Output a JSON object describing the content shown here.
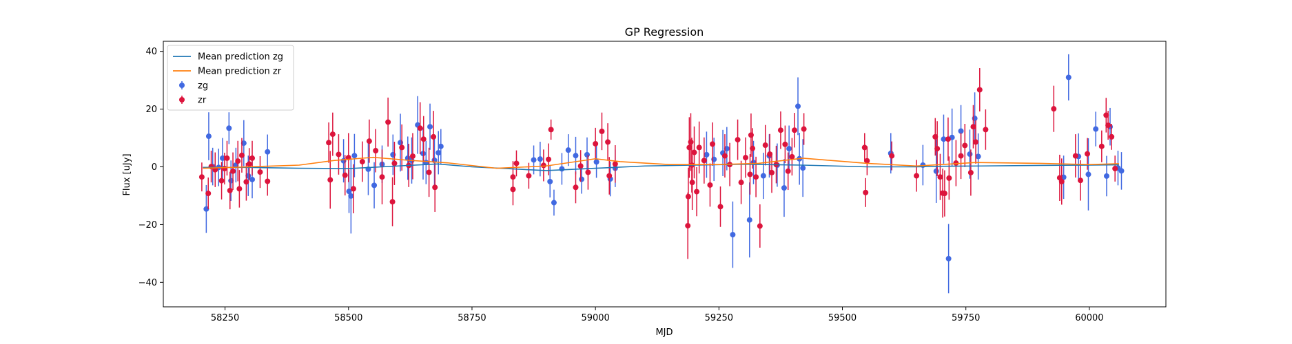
{
  "chart_data": {
    "type": "scatter",
    "title": "GP Regression",
    "xlabel": "MJD",
    "ylabel": "Flux [uJy]",
    "xlim": [
      58125,
      60155
    ],
    "ylim": [
      -48.5,
      43.5
    ],
    "xticks": [
      58250,
      58500,
      58750,
      59000,
      59250,
      59500,
      59750,
      60000
    ],
    "yticks": [
      -40,
      -20,
      0,
      20,
      40
    ],
    "grid": false,
    "legend_position": "top-left",
    "legend": [
      {
        "label": "Mean prediction zg",
        "kind": "line",
        "color": "#1f77b4"
      },
      {
        "label": "Mean prediction zr",
        "kind": "line",
        "color": "#ff7f0e"
      },
      {
        "label": "zg",
        "kind": "errorbar",
        "color": "#4169e1"
      },
      {
        "label": "zr",
        "kind": "errorbar",
        "color": "#dc143c"
      }
    ],
    "series": [
      {
        "name": "Mean prediction zg",
        "kind": "line",
        "color": "#1f77b4",
        "x": [
          58205,
          58300,
          58400,
          58500,
          58600,
          58680,
          58750,
          58900,
          59000,
          59100,
          59200,
          59300,
          59420,
          59550,
          59650,
          59700,
          59780,
          59900,
          60000,
          60060
        ],
        "y": [
          -0.2,
          -0.2,
          -0.5,
          -0.6,
          0.3,
          1.0,
          0.0,
          -1.3,
          -0.5,
          0.3,
          0.6,
          0.9,
          0.6,
          0.0,
          0.0,
          0.2,
          0.3,
          0.5,
          0.6,
          0.7
        ]
      },
      {
        "name": "Mean prediction zr",
        "kind": "line",
        "color": "#ff7f0e",
        "x": [
          58205,
          58300,
          58400,
          58470,
          58550,
          58620,
          58700,
          58800,
          58900,
          59000,
          59050,
          59150,
          59250,
          59330,
          59420,
          59550,
          59650,
          59700,
          59770,
          59900,
          60000,
          60060
        ],
        "y": [
          -0.5,
          0.0,
          0.6,
          2.2,
          3.3,
          2.3,
          1.4,
          -0.5,
          0.3,
          2.8,
          1.8,
          0.8,
          0.8,
          1.2,
          3.0,
          1.2,
          0.3,
          0.8,
          1.5,
          1.2,
          0.8,
          1.1
        ]
      },
      {
        "name": "zg",
        "kind": "errorbar",
        "color": "#4169e1",
        "x": [
          58212,
          58217,
          58225,
          58237,
          58245,
          58258,
          58262,
          58272,
          58288,
          58297,
          58305,
          58336,
          58490,
          58501,
          58505,
          58512,
          58540,
          58552,
          58568,
          58590,
          58605,
          58620,
          58628,
          58640,
          58651,
          58657,
          58665,
          58674,
          58682,
          58687,
          58875,
          58888,
          58908,
          58916,
          58932,
          58945,
          58960,
          58972,
          58983,
          59002,
          59030,
          59040,
          59225,
          59240,
          59258,
          59266,
          59278,
          59312,
          59320,
          59340,
          59352,
          59368,
          59382,
          59392,
          59410,
          59413,
          59420,
          59598,
          59663,
          59690,
          59705,
          59715,
          59722,
          59740,
          59758,
          59768,
          59775,
          59948,
          59958,
          59978,
          59998,
          60013,
          60035,
          60042,
          60058,
          60065
        ],
        "y": [
          -14.6,
          10.6,
          0.1,
          -0.2,
          3.0,
          13.4,
          -4.8,
          0.6,
          8.2,
          -3.1,
          -4.4,
          5.2,
          2.1,
          -8.5,
          -10.1,
          3.9,
          -0.8,
          -6.4,
          0.9,
          4.2,
          8.4,
          3.0,
          2.2,
          14.5,
          4.6,
          1.5,
          13.9,
          2.3,
          4.9,
          7.1,
          2.4,
          2.7,
          -5.1,
          -12.4,
          -0.7,
          5.8,
          3.9,
          -4.3,
          4.2,
          1.7,
          -4.2,
          -0.5,
          4.2,
          2.6,
          4.8,
          6.3,
          -23.5,
          -18.4,
          1.5,
          -3.1,
          3.8,
          0.6,
          -7.3,
          6.3,
          21.0,
          2.8,
          -0.4,
          4.7,
          0.6,
          -1.5,
          9.6,
          -31.8,
          10.2,
          12.4,
          4.4,
          16.8,
          3.6,
          -3.6,
          31.0,
          3.6,
          -2.6,
          13.1,
          -3.2,
          13.9,
          -0.4,
          -1.4
        ],
        "yerr": [
          8.3,
          8.3,
          6.5,
          6.5,
          7.0,
          5.5,
          7.0,
          6.0,
          8.0,
          7.0,
          6.5,
          6.0,
          7.5,
          7.5,
          13.0,
          7.5,
          9.0,
          8.0,
          6.5,
          7.0,
          10.0,
          7.5,
          8.0,
          10.0,
          9.0,
          7.5,
          8.0,
          8.5,
          7.5,
          6.0,
          5.0,
          6.0,
          5.5,
          4.5,
          5.5,
          5.5,
          6.5,
          5.0,
          6.0,
          5.5,
          6.0,
          6.5,
          8.0,
          7.5,
          8.0,
          7.5,
          11.5,
          13.0,
          7.5,
          8.0,
          7.5,
          7.5,
          10.0,
          8.0,
          10.0,
          9.0,
          10.0,
          7.0,
          7.0,
          11.0,
          8.5,
          12.0,
          10.0,
          9.0,
          8.5,
          9.0,
          8.0,
          7.5,
          8.0,
          8.0,
          12.5,
          6.0,
          7.0,
          6.5,
          6.0,
          6.5
        ]
      },
      {
        "name": "zr",
        "kind": "errorbar",
        "color": "#dc143c",
        "x": [
          58203,
          58216,
          58222,
          58230,
          58243,
          58249,
          58254,
          58260,
          58266,
          58276,
          58279,
          58284,
          58293,
          58299,
          58305,
          58321,
          58336,
          58460,
          58463,
          58468,
          58480,
          58493,
          58500,
          58510,
          58528,
          58542,
          58555,
          58568,
          58580,
          58589,
          58593,
          58608,
          58622,
          58630,
          58645,
          58652,
          58663,
          58672,
          58675,
          58833,
          58833,
          58840,
          58865,
          58895,
          58905,
          58910,
          58960,
          58970,
          58985,
          59000,
          59013,
          59025,
          59028,
          59040,
          59187,
          59188,
          59190,
          59193,
          59195,
          59196,
          59200,
          59205,
          59210,
          59220,
          59232,
          59237,
          59253,
          59262,
          59272,
          59288,
          59295,
          59304,
          59313,
          59315,
          59318,
          59325,
          59333,
          59344,
          59353,
          59357,
          59366,
          59375,
          59384,
          59390,
          59398,
          59403,
          59422,
          59545,
          59547,
          59550,
          59600,
          59650,
          59688,
          59692,
          59698,
          59703,
          59707,
          59714,
          59716,
          59730,
          59740,
          59748,
          59760,
          59765,
          59770,
          59778,
          59790,
          59928,
          59940,
          59944,
          59972,
          59982,
          59996,
          60025,
          60034,
          60038,
          60045,
          60052
        ],
        "y": [
          -3.5,
          -9.2,
          0.1,
          -1.0,
          -4.8,
          -0.6,
          3.0,
          -8.2,
          -1.5,
          2.0,
          -7.6,
          4.0,
          -5.2,
          1.0,
          3.0,
          -1.8,
          -5.0,
          8.4,
          -4.5,
          11.3,
          4.3,
          -2.9,
          3.2,
          -7.6,
          1.8,
          8.9,
          5.6,
          -3.5,
          15.5,
          -12.1,
          1.2,
          6.7,
          0.5,
          3.7,
          13.4,
          9.6,
          -1.9,
          10.4,
          -7.1,
          -7.8,
          -3.5,
          1.2,
          -3.1,
          0.5,
          2.6,
          12.9,
          -7.1,
          0.3,
          -1.9,
          8.0,
          12.3,
          8.6,
          -3.1,
          1.0,
          -20.4,
          -10.3,
          6.7,
          8.6,
          0.6,
          -5.4,
          5.0,
          -8.6,
          6.7,
          2.2,
          -6.3,
          7.9,
          -13.8,
          3.8,
          0.8,
          9.4,
          -5.4,
          3.2,
          -2.6,
          11.0,
          6.4,
          -3.5,
          -20.5,
          7.5,
          4.4,
          -2.0,
          0.8,
          12.7,
          7.8,
          -1.5,
          3.5,
          12.7,
          13.1,
          6.7,
          -8.9,
          2.1,
          3.8,
          -3.1,
          10.4,
          6.3,
          -3.5,
          -9.1,
          -9.2,
          9.6,
          -3.9,
          1.3,
          3.8,
          7.4,
          -2.0,
          13.9,
          8.6,
          26.7,
          12.9,
          20.1,
          -3.8,
          -5.1,
          3.8,
          -4.7,
          4.5,
          7.1,
          17.9,
          14.4,
          10.4,
          -0.6
        ],
        "yerr": [
          5.0,
          5.5,
          5.5,
          6.0,
          6.5,
          5.5,
          6.0,
          6.5,
          6.5,
          7.0,
          6.5,
          6.0,
          6.5,
          5.5,
          6.0,
          5.5,
          5.0,
          7.0,
          10.0,
          7.5,
          7.0,
          7.0,
          8.5,
          8.5,
          7.0,
          7.5,
          7.5,
          9.5,
          8.5,
          8.5,
          7.5,
          8.0,
          7.5,
          8.0,
          9.0,
          8.0,
          8.5,
          9.0,
          8.5,
          5.5,
          5.5,
          4.5,
          4.5,
          5.5,
          5.5,
          3.5,
          5.5,
          5.5,
          6.0,
          5.5,
          6.5,
          6.5,
          6.5,
          6.5,
          11.5,
          10.0,
          10.5,
          10.0,
          9.5,
          9.5,
          9.0,
          8.5,
          9.0,
          8.0,
          7.5,
          7.5,
          7.0,
          7.5,
          7.5,
          7.0,
          7.5,
          7.0,
          7.0,
          7.5,
          7.0,
          7.0,
          7.5,
          7.0,
          7.0,
          7.0,
          6.5,
          6.5,
          6.5,
          6.5,
          6.5,
          6.0,
          5.5,
          5.0,
          5.0,
          5.0,
          5.0,
          5.5,
          6.5,
          9.5,
          8.0,
          8.5,
          8.0,
          7.5,
          7.5,
          8.0,
          8.0,
          7.5,
          8.0,
          7.5,
          7.5,
          7.5,
          7.0,
          8.0,
          8.0,
          8.0,
          7.5,
          7.0,
          5.5,
          5.5,
          6.0,
          5.0,
          4.5,
          4.5
        ]
      }
    ]
  }
}
